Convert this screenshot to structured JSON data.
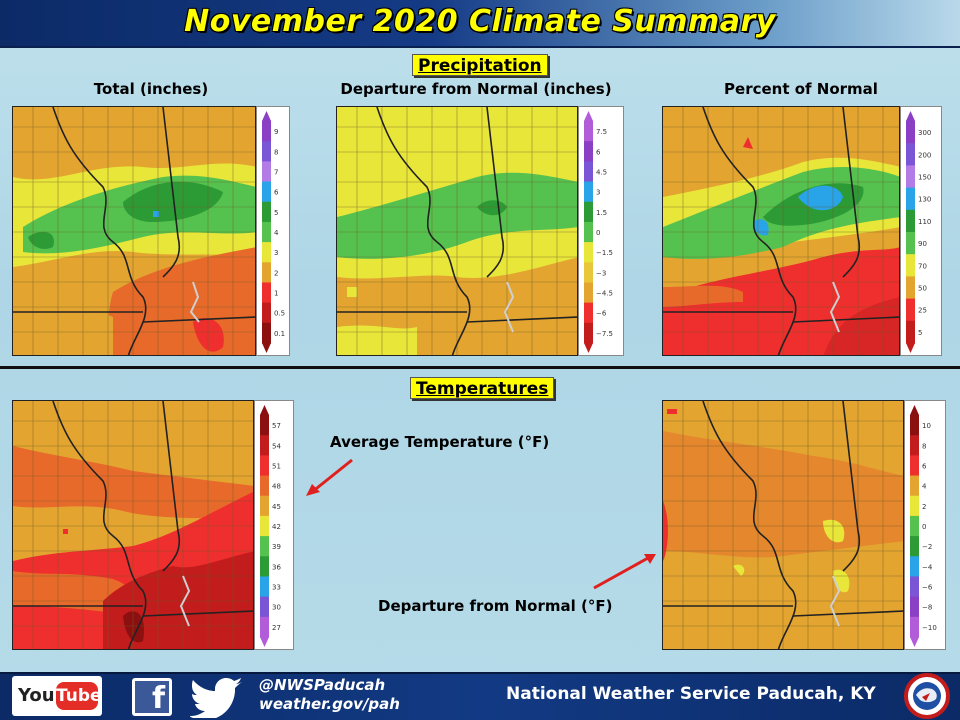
{
  "header": {
    "title": "November 2020 Climate Summary"
  },
  "precipitation": {
    "section_label": "Precipitation",
    "maps": [
      {
        "title": "Total  (inches)",
        "legend_ticks": [
          "9",
          "8",
          "7",
          "6",
          "5",
          "4",
          "3",
          "2",
          "1",
          "0.5",
          "0.1"
        ],
        "legend_colors": [
          "#8b3fc4",
          "#7a55d6",
          "#b37be6",
          "#2aa4e8",
          "#2d9b35",
          "#55c24f",
          "#e9e63a",
          "#e3a530",
          "#ef2e2e",
          "#c21c1c",
          "#8d1010"
        ]
      },
      {
        "title": "Departure  from Normal  (inches)",
        "legend_ticks": [
          "7.5",
          "6",
          "4.5",
          "3",
          "1.5",
          "0",
          "−1.5",
          "−3",
          "−4.5",
          "−6",
          "−7.5"
        ],
        "legend_colors": [
          "#b25cd9",
          "#8b3fc4",
          "#7a55d6",
          "#2aa4e8",
          "#2d9b35",
          "#55c24f",
          "#e9e63a",
          "#e8c83a",
          "#e3a530",
          "#ef2e2e",
          "#c21c1c"
        ]
      },
      {
        "title": "Percent of Normal",
        "legend_ticks": [
          "300",
          "200",
          "150",
          "130",
          "110",
          "90",
          "70",
          "50",
          "25",
          "5"
        ],
        "legend_colors": [
          "#8b3fc4",
          "#7a55d6",
          "#b37be6",
          "#2aa4e8",
          "#2d9b35",
          "#55c24f",
          "#e9e63a",
          "#e3a530",
          "#ef2e2e",
          "#c21c1c"
        ]
      }
    ]
  },
  "temperatures": {
    "section_label": "Temperatures",
    "avg_label": "Average Temperature  (°F)",
    "dep_label": "Departure  from Normal  (°F)",
    "avg_legend_ticks": [
      "57",
      "54",
      "51",
      "48",
      "45",
      "42",
      "39",
      "36",
      "33",
      "30",
      "27"
    ],
    "avg_legend_colors": [
      "#8d1010",
      "#c21c1c",
      "#ef2e2e",
      "#e86a2a",
      "#e3a530",
      "#e9e63a",
      "#55c24f",
      "#2d9b35",
      "#2aa4e8",
      "#7a55d6",
      "#b25cd9"
    ],
    "dep_legend_ticks": [
      "10",
      "8",
      "6",
      "4",
      "2",
      "0",
      "−2",
      "−4",
      "−6",
      "−8",
      "−10"
    ],
    "dep_legend_colors": [
      "#8d1010",
      "#c21c1c",
      "#ef2e2e",
      "#e3a530",
      "#e9e63a",
      "#55c24f",
      "#2d9b35",
      "#2aa4e8",
      "#7a55d6",
      "#8b3fc4",
      "#b25cd9"
    ]
  },
  "footer": {
    "youtube_you": "You",
    "youtube_tube": "Tube",
    "facebook_glyph": "f",
    "twitter_handle": "@NWSPaducah",
    "website": "weather.gov/pah",
    "office": "National Weather Service Paducah, KY"
  }
}
